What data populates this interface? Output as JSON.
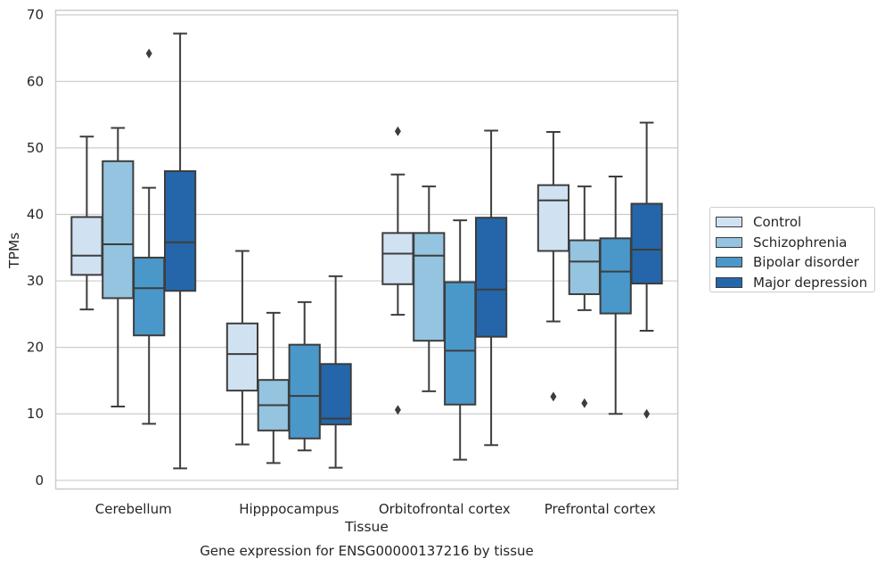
{
  "chart_data": {
    "type": "box",
    "title": "",
    "caption": "Gene expression for ENSG00000137216 by tissue",
    "xlabel": "Tissue",
    "ylabel": "TPMs",
    "ylim": [
      -1.3,
      70.7
    ],
    "yticks": [
      0,
      10,
      20,
      30,
      40,
      50,
      60,
      70
    ],
    "grid": "horizontal",
    "legend_position": "right",
    "categories": [
      "Cerebellum",
      "Hipppocampus",
      "Orbitofrontal cortex",
      "Prefrontal cortex"
    ],
    "series": [
      {
        "name": "Control",
        "color": "#d0e1f2",
        "boxes": [
          {
            "whislo": 25.7,
            "q1": 30.9,
            "med": 33.8,
            "q3": 39.6,
            "whishi": 51.7,
            "fliers": []
          },
          {
            "whislo": 5.4,
            "q1": 13.5,
            "med": 19.0,
            "q3": 23.6,
            "whishi": 34.5,
            "fliers": []
          },
          {
            "whislo": 24.9,
            "q1": 29.5,
            "med": 34.1,
            "q3": 37.2,
            "whishi": 46.0,
            "fliers": [
              52.5,
              10.6
            ]
          },
          {
            "whislo": 23.9,
            "q1": 34.5,
            "med": 42.1,
            "q3": 44.4,
            "whishi": 52.4,
            "fliers": [
              12.6
            ]
          }
        ]
      },
      {
        "name": "Schizophrenia",
        "color": "#94c4df",
        "boxes": [
          {
            "whislo": 11.1,
            "q1": 27.4,
            "med": 35.5,
            "q3": 48.0,
            "whishi": 53.0,
            "fliers": []
          },
          {
            "whislo": 2.6,
            "q1": 7.5,
            "med": 11.3,
            "q3": 15.1,
            "whishi": 25.2,
            "fliers": []
          },
          {
            "whislo": 13.4,
            "q1": 21.0,
            "med": 33.8,
            "q3": 37.2,
            "whishi": 44.2,
            "fliers": []
          },
          {
            "whislo": 25.6,
            "q1": 28.0,
            "med": 32.9,
            "q3": 36.1,
            "whishi": 44.2,
            "fliers": [
              11.6
            ]
          }
        ]
      },
      {
        "name": "Bipolar disorder",
        "color": "#4a98c9",
        "boxes": [
          {
            "whislo": 8.5,
            "q1": 21.8,
            "med": 28.9,
            "q3": 33.5,
            "whishi": 44.0,
            "fliers": [
              64.2
            ]
          },
          {
            "whislo": 4.5,
            "q1": 6.3,
            "med": 12.7,
            "q3": 20.4,
            "whishi": 26.8,
            "fliers": []
          },
          {
            "whislo": 3.1,
            "q1": 11.4,
            "med": 19.5,
            "q3": 29.8,
            "whishi": 39.1,
            "fliers": []
          },
          {
            "whislo": 10.0,
            "q1": 25.1,
            "med": 31.4,
            "q3": 36.4,
            "whishi": 45.7,
            "fliers": []
          }
        ]
      },
      {
        "name": "Major depression",
        "color": "#2466a9",
        "boxes": [
          {
            "whislo": 1.8,
            "q1": 28.5,
            "med": 35.8,
            "q3": 46.5,
            "whishi": 67.2,
            "fliers": []
          },
          {
            "whislo": 1.9,
            "q1": 8.4,
            "med": 9.3,
            "q3": 17.5,
            "whishi": 30.7,
            "fliers": []
          },
          {
            "whislo": 5.3,
            "q1": 21.6,
            "med": 28.7,
            "q3": 39.5,
            "whishi": 52.6,
            "fliers": []
          },
          {
            "whislo": 22.5,
            "q1": 29.6,
            "med": 34.7,
            "q3": 41.6,
            "whishi": 53.8,
            "fliers": [
              10.0
            ]
          }
        ]
      }
    ]
  }
}
